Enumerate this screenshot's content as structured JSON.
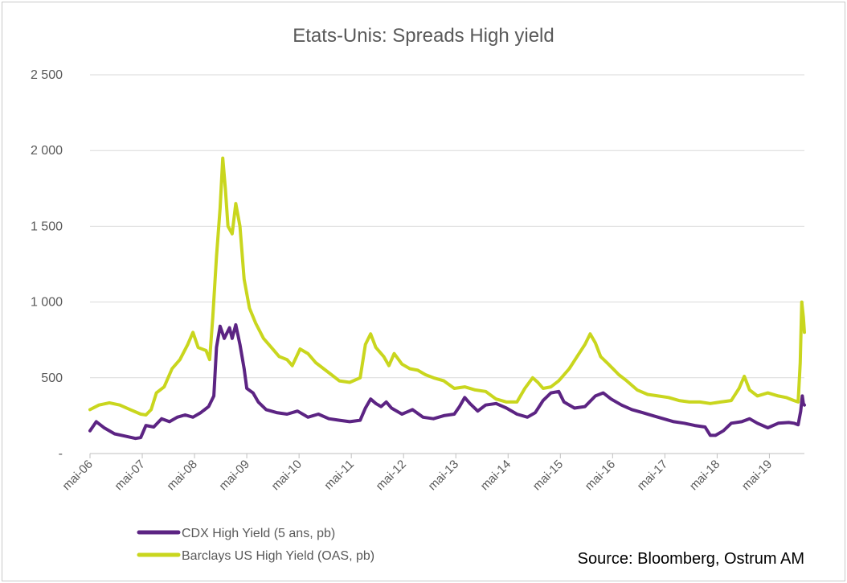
{
  "chart_data": {
    "type": "line",
    "title": "Etats-Unis: Spreads High yield",
    "xlabel": "",
    "ylabel": "",
    "ylim": [
      0,
      2500
    ],
    "yticks": [
      {
        "value": 0,
        "label": "-"
      },
      {
        "value": 500,
        "label": "500"
      },
      {
        "value": 1000,
        "label": "1 000"
      },
      {
        "value": 1500,
        "label": "1 500"
      },
      {
        "value": 2000,
        "label": "2 000"
      },
      {
        "value": 2500,
        "label": "2 500"
      }
    ],
    "xlim": [
      2006.33,
      2020.0
    ],
    "xticks": [
      {
        "value": 2006.33,
        "label": "mai-06"
      },
      {
        "value": 2007.33,
        "label": "mai-07"
      },
      {
        "value": 2008.33,
        "label": "mai-08"
      },
      {
        "value": 2009.33,
        "label": "mai-09"
      },
      {
        "value": 2010.33,
        "label": "mai-10"
      },
      {
        "value": 2011.33,
        "label": "mai-11"
      },
      {
        "value": 2012.33,
        "label": "mai-12"
      },
      {
        "value": 2013.33,
        "label": "mai-13"
      },
      {
        "value": 2014.33,
        "label": "mai-14"
      },
      {
        "value": 2015.33,
        "label": "mai-15"
      },
      {
        "value": 2016.33,
        "label": "mai-16"
      },
      {
        "value": 2017.33,
        "label": "mai-17"
      },
      {
        "value": 2018.33,
        "label": "mai-18"
      },
      {
        "value": 2019.33,
        "label": "mai-19"
      }
    ],
    "grid": true,
    "legend": "bottom-left",
    "series": [
      {
        "name": "CDX High Yield (5 ans, pb)",
        "color": "#5c2483",
        "points": [
          [
            2006.33,
            150
          ],
          [
            2006.45,
            210
          ],
          [
            2006.6,
            170
          ],
          [
            2006.8,
            130
          ],
          [
            2007.0,
            115
          ],
          [
            2007.2,
            100
          ],
          [
            2007.3,
            105
          ],
          [
            2007.4,
            185
          ],
          [
            2007.55,
            175
          ],
          [
            2007.7,
            230
          ],
          [
            2007.85,
            210
          ],
          [
            2008.0,
            240
          ],
          [
            2008.15,
            255
          ],
          [
            2008.3,
            240
          ],
          [
            2008.45,
            270
          ],
          [
            2008.6,
            310
          ],
          [
            2008.7,
            380
          ],
          [
            2008.75,
            700
          ],
          [
            2008.82,
            840
          ],
          [
            2008.9,
            760
          ],
          [
            2009.0,
            830
          ],
          [
            2009.05,
            760
          ],
          [
            2009.12,
            850
          ],
          [
            2009.2,
            720
          ],
          [
            2009.28,
            560
          ],
          [
            2009.33,
            430
          ],
          [
            2009.45,
            400
          ],
          [
            2009.55,
            340
          ],
          [
            2009.7,
            290
          ],
          [
            2009.9,
            270
          ],
          [
            2010.1,
            260
          ],
          [
            2010.3,
            280
          ],
          [
            2010.5,
            240
          ],
          [
            2010.7,
            260
          ],
          [
            2010.9,
            230
          ],
          [
            2011.1,
            220
          ],
          [
            2011.3,
            210
          ],
          [
            2011.5,
            220
          ],
          [
            2011.6,
            300
          ],
          [
            2011.7,
            360
          ],
          [
            2011.8,
            330
          ],
          [
            2011.9,
            310
          ],
          [
            2012.0,
            340
          ],
          [
            2012.1,
            300
          ],
          [
            2012.3,
            260
          ],
          [
            2012.5,
            290
          ],
          [
            2012.7,
            240
          ],
          [
            2012.9,
            230
          ],
          [
            2013.1,
            250
          ],
          [
            2013.3,
            260
          ],
          [
            2013.4,
            310
          ],
          [
            2013.5,
            370
          ],
          [
            2013.6,
            330
          ],
          [
            2013.75,
            280
          ],
          [
            2013.9,
            320
          ],
          [
            2014.1,
            330
          ],
          [
            2014.3,
            300
          ],
          [
            2014.5,
            260
          ],
          [
            2014.7,
            240
          ],
          [
            2014.85,
            270
          ],
          [
            2015.0,
            350
          ],
          [
            2015.15,
            400
          ],
          [
            2015.3,
            410
          ],
          [
            2015.4,
            340
          ],
          [
            2015.6,
            300
          ],
          [
            2015.8,
            310
          ],
          [
            2016.0,
            380
          ],
          [
            2016.15,
            400
          ],
          [
            2016.3,
            360
          ],
          [
            2016.5,
            320
          ],
          [
            2016.7,
            290
          ],
          [
            2016.9,
            270
          ],
          [
            2017.1,
            250
          ],
          [
            2017.3,
            230
          ],
          [
            2017.5,
            210
          ],
          [
            2017.7,
            200
          ],
          [
            2017.9,
            185
          ],
          [
            2018.1,
            175
          ],
          [
            2018.2,
            120
          ],
          [
            2018.3,
            120
          ],
          [
            2018.45,
            150
          ],
          [
            2018.6,
            200
          ],
          [
            2018.8,
            210
          ],
          [
            2018.95,
            230
          ],
          [
            2019.1,
            200
          ],
          [
            2019.3,
            170
          ],
          [
            2019.5,
            200
          ],
          [
            2019.7,
            205
          ],
          [
            2019.8,
            200
          ],
          [
            2019.88,
            190
          ],
          [
            2019.93,
            280
          ],
          [
            2019.96,
            380
          ],
          [
            2019.98,
            330
          ],
          [
            2020.0,
            320
          ]
        ]
      },
      {
        "name": "Barclays US High Yield (OAS, pb)",
        "color": "#c9d61e",
        "points": [
          [
            2006.33,
            290
          ],
          [
            2006.5,
            320
          ],
          [
            2006.7,
            335
          ],
          [
            2006.9,
            320
          ],
          [
            2007.1,
            290
          ],
          [
            2007.3,
            260
          ],
          [
            2007.4,
            255
          ],
          [
            2007.5,
            290
          ],
          [
            2007.6,
            400
          ],
          [
            2007.75,
            440
          ],
          [
            2007.9,
            560
          ],
          [
            2008.05,
            620
          ],
          [
            2008.2,
            720
          ],
          [
            2008.3,
            800
          ],
          [
            2008.4,
            700
          ],
          [
            2008.55,
            680
          ],
          [
            2008.62,
            620
          ],
          [
            2008.68,
            900
          ],
          [
            2008.75,
            1300
          ],
          [
            2008.82,
            1620
          ],
          [
            2008.87,
            1950
          ],
          [
            2008.92,
            1750
          ],
          [
            2008.97,
            1500
          ],
          [
            2009.05,
            1450
          ],
          [
            2009.12,
            1650
          ],
          [
            2009.2,
            1500
          ],
          [
            2009.28,
            1150
          ],
          [
            2009.38,
            960
          ],
          [
            2009.5,
            860
          ],
          [
            2009.65,
            760
          ],
          [
            2009.8,
            700
          ],
          [
            2009.95,
            640
          ],
          [
            2010.1,
            620
          ],
          [
            2010.2,
            580
          ],
          [
            2010.35,
            690
          ],
          [
            2010.5,
            660
          ],
          [
            2010.65,
            600
          ],
          [
            2010.8,
            560
          ],
          [
            2010.95,
            520
          ],
          [
            2011.1,
            480
          ],
          [
            2011.3,
            470
          ],
          [
            2011.5,
            500
          ],
          [
            2011.6,
            720
          ],
          [
            2011.7,
            790
          ],
          [
            2011.8,
            700
          ],
          [
            2011.95,
            640
          ],
          [
            2012.05,
            580
          ],
          [
            2012.15,
            660
          ],
          [
            2012.3,
            590
          ],
          [
            2012.45,
            560
          ],
          [
            2012.6,
            550
          ],
          [
            2012.75,
            520
          ],
          [
            2012.9,
            500
          ],
          [
            2013.1,
            480
          ],
          [
            2013.3,
            430
          ],
          [
            2013.5,
            440
          ],
          [
            2013.7,
            420
          ],
          [
            2013.9,
            410
          ],
          [
            2014.1,
            360
          ],
          [
            2014.3,
            340
          ],
          [
            2014.5,
            340
          ],
          [
            2014.65,
            430
          ],
          [
            2014.8,
            500
          ],
          [
            2014.9,
            470
          ],
          [
            2015.0,
            430
          ],
          [
            2015.15,
            440
          ],
          [
            2015.3,
            480
          ],
          [
            2015.5,
            560
          ],
          [
            2015.65,
            640
          ],
          [
            2015.8,
            720
          ],
          [
            2015.9,
            790
          ],
          [
            2016.0,
            730
          ],
          [
            2016.1,
            640
          ],
          [
            2016.25,
            590
          ],
          [
            2016.45,
            520
          ],
          [
            2016.6,
            480
          ],
          [
            2016.8,
            420
          ],
          [
            2017.0,
            390
          ],
          [
            2017.2,
            380
          ],
          [
            2017.4,
            370
          ],
          [
            2017.6,
            350
          ],
          [
            2017.8,
            340
          ],
          [
            2018.0,
            340
          ],
          [
            2018.2,
            330
          ],
          [
            2018.4,
            340
          ],
          [
            2018.6,
            350
          ],
          [
            2018.75,
            430
          ],
          [
            2018.85,
            510
          ],
          [
            2018.95,
            420
          ],
          [
            2019.1,
            380
          ],
          [
            2019.3,
            400
          ],
          [
            2019.5,
            380
          ],
          [
            2019.65,
            370
          ],
          [
            2019.8,
            350
          ],
          [
            2019.88,
            340
          ],
          [
            2019.92,
            600
          ],
          [
            2019.95,
            1000
          ],
          [
            2019.98,
            900
          ],
          [
            2020.0,
            800
          ]
        ]
      }
    ],
    "source": "Source: Bloomberg, Ostrum AM"
  }
}
